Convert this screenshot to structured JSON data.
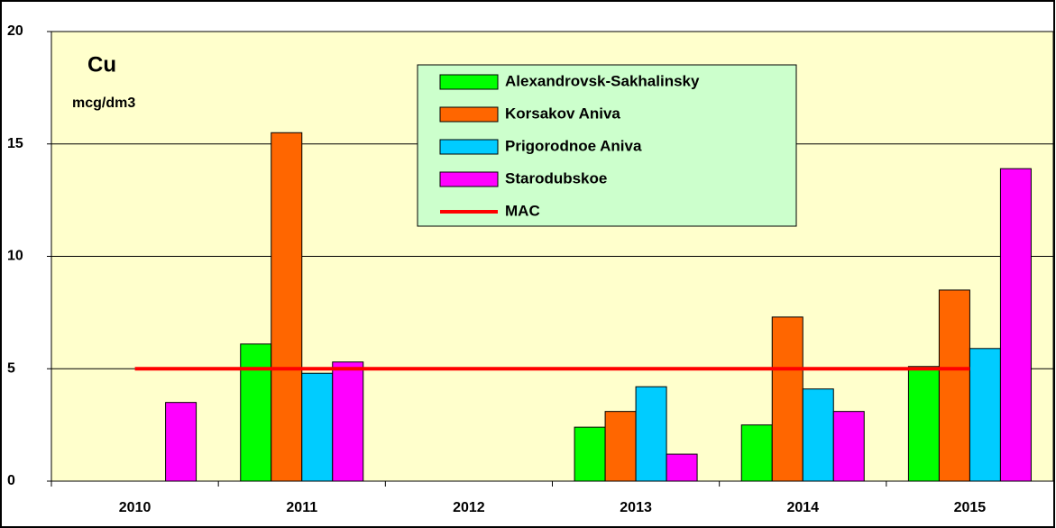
{
  "chart_data": {
    "type": "bar",
    "title": "Cu",
    "subtitle": "mcg/dm3",
    "categories": [
      "2010",
      "2011",
      "2012",
      "2013",
      "2014",
      "2015"
    ],
    "series": [
      {
        "name": "Alexandrovsk-Sakhalinsky",
        "color": "#00ff00",
        "values": [
          null,
          6.1,
          null,
          2.4,
          2.5,
          5.1
        ]
      },
      {
        "name": "Korsakov Aniva",
        "color": "#ff6600",
        "values": [
          null,
          15.5,
          null,
          3.1,
          7.3,
          8.5
        ]
      },
      {
        "name": "Prigorodnoe Aniva",
        "color": "#00ccff",
        "values": [
          null,
          4.8,
          null,
          4.2,
          4.1,
          5.9
        ]
      },
      {
        "name": "Starodubskoe",
        "color": "#ff00ff",
        "values": [
          3.5,
          5.3,
          null,
          1.2,
          3.1,
          13.9
        ]
      },
      {
        "name": "MAC",
        "color": "#ff0000",
        "type": "line",
        "values": [
          5,
          5,
          5,
          5,
          5,
          5
        ]
      }
    ],
    "ylim": [
      0,
      20
    ],
    "yticks": [
      0,
      5,
      10,
      15,
      20
    ],
    "grid": true
  }
}
